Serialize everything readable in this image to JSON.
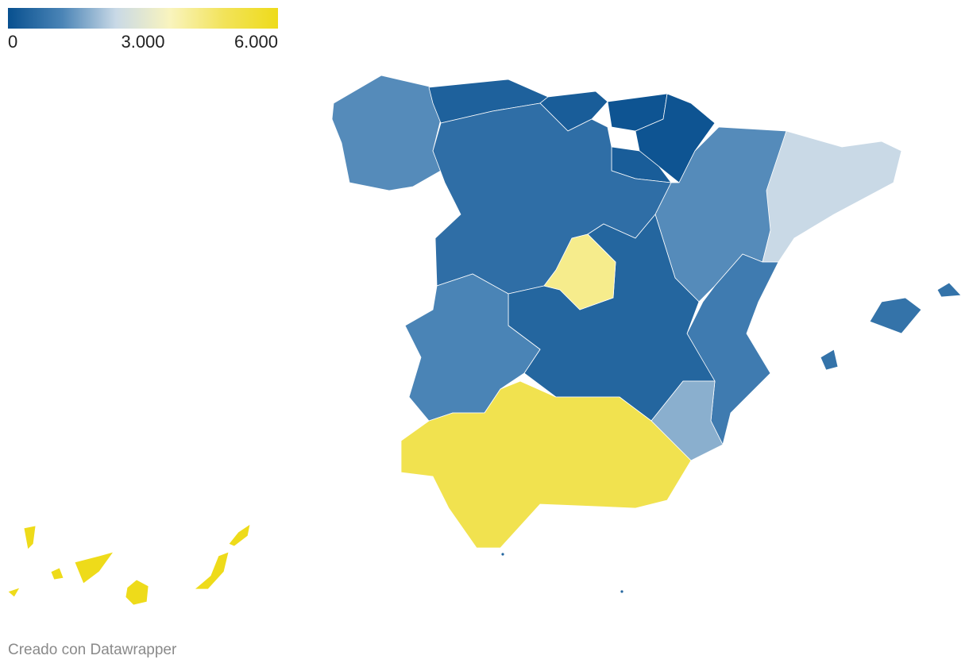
{
  "chart_data": {
    "type": "choropleth",
    "colorlim": [
      0,
      6000
    ],
    "colorticks": [
      0,
      {
        "value": 3000,
        "label": "3.000"
      },
      {
        "value": 6000,
        "label": "6.000"
      }
    ],
    "colors": [
      "#08508f",
      "#4a84b6",
      "#c9d9e6",
      "#f9f4be",
      "#f2e35a",
      "#eedb1a"
    ],
    "values": [
      1300,
      400,
      300,
      100,
      100,
      300,
      700,
      4200,
      1300,
      2400,
      1000,
      500,
      1200,
      1800,
      5000,
      800,
      6000,
      500,
      500
    ],
    "footer": "Creado con Datawrapper"
  }
}
